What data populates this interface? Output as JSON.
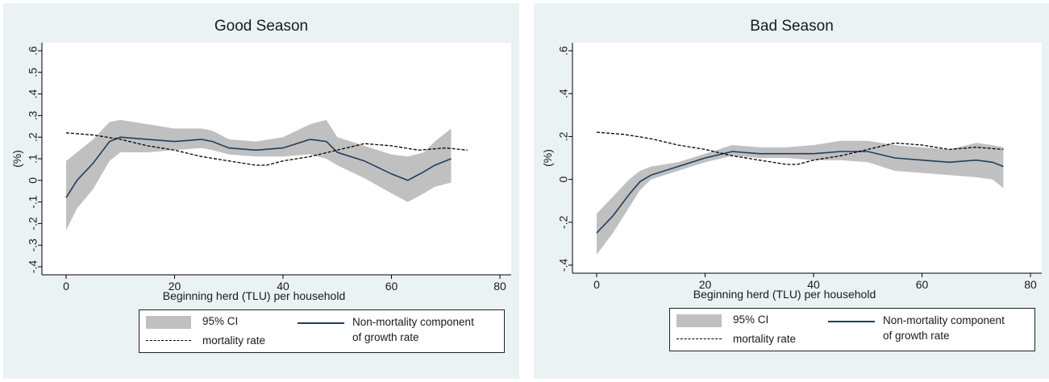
{
  "chart_data": [
    {
      "type": "line",
      "title": "Good Season",
      "xlabel": "Beginning herd (TLU) per household",
      "ylabel": "(%)",
      "xlim": [
        0,
        80
      ],
      "ylim": [
        -0.4,
        0.6
      ],
      "xticks": [
        "0",
        "20",
        "40",
        "60",
        "80"
      ],
      "yticks": [
        "-.4",
        "-.3",
        "-.2",
        "-.1",
        "0",
        ".1",
        ".2",
        ".3",
        ".4",
        ".5",
        ".6"
      ],
      "grid": false,
      "legend_position": "bottom",
      "series": [
        {
          "name": "Non-mortality component of growth rate",
          "style": "solid",
          "color": "#1f3d5c",
          "x": [
            0,
            2,
            5,
            8,
            10,
            15,
            20,
            25,
            27,
            30,
            35,
            40,
            45,
            48,
            50,
            55,
            60,
            63,
            66,
            68,
            71
          ],
          "y": [
            -0.08,
            0.0,
            0.08,
            0.18,
            0.2,
            0.19,
            0.18,
            0.19,
            0.18,
            0.15,
            0.14,
            0.15,
            0.19,
            0.18,
            0.13,
            0.09,
            0.03,
            0.0,
            0.04,
            0.07,
            0.1
          ]
        },
        {
          "name": "mortality rate",
          "style": "dashed",
          "color": "#000000",
          "x": [
            0,
            5,
            10,
            15,
            20,
            25,
            30,
            35,
            37,
            40,
            45,
            50,
            55,
            60,
            65,
            70,
            74
          ],
          "y": [
            0.22,
            0.21,
            0.19,
            0.16,
            0.14,
            0.11,
            0.09,
            0.07,
            0.07,
            0.09,
            0.11,
            0.14,
            0.17,
            0.16,
            0.14,
            0.15,
            0.14
          ]
        },
        {
          "name": "95% CI",
          "style": "band",
          "color": "#c0c0c0",
          "x": [
            0,
            2,
            5,
            8,
            10,
            15,
            20,
            25,
            27,
            30,
            35,
            40,
            45,
            48,
            50,
            55,
            60,
            63,
            66,
            68,
            71
          ],
          "lower": [
            -0.23,
            -0.13,
            -0.04,
            0.09,
            0.13,
            0.13,
            0.14,
            0.15,
            0.14,
            0.12,
            0.11,
            0.11,
            0.12,
            0.1,
            0.07,
            0.01,
            -0.06,
            -0.1,
            -0.06,
            -0.03,
            -0.01
          ],
          "upper": [
            0.09,
            0.13,
            0.19,
            0.27,
            0.28,
            0.26,
            0.24,
            0.24,
            0.23,
            0.19,
            0.18,
            0.2,
            0.26,
            0.28,
            0.2,
            0.16,
            0.12,
            0.11,
            0.13,
            0.18,
            0.24
          ]
        }
      ]
    },
    {
      "type": "line",
      "title": "Bad Season",
      "xlabel": "Beginning herd (TLU) per household",
      "ylabel": "(%)",
      "xlim": [
        0,
        80
      ],
      "ylim": [
        -0.4,
        0.6
      ],
      "xticks": [
        "0",
        "20",
        "40",
        "60",
        "80"
      ],
      "yticks": [
        "-.4",
        "-.2",
        "0",
        ".2",
        ".4",
        ".6"
      ],
      "grid": false,
      "legend_position": "bottom",
      "series": [
        {
          "name": "Non-mortality component of growth rate",
          "style": "solid",
          "color": "#1f3d5c",
          "x": [
            0,
            3,
            6,
            8,
            10,
            15,
            20,
            25,
            30,
            35,
            40,
            45,
            50,
            55,
            60,
            65,
            70,
            73,
            75
          ],
          "y": [
            -0.25,
            -0.17,
            -0.07,
            -0.01,
            0.02,
            0.06,
            0.1,
            0.13,
            0.12,
            0.12,
            0.12,
            0.13,
            0.13,
            0.1,
            0.09,
            0.08,
            0.09,
            0.08,
            0.06
          ]
        },
        {
          "name": "mortality rate",
          "style": "dashed",
          "color": "#000000",
          "x": [
            0,
            5,
            10,
            15,
            20,
            25,
            30,
            35,
            37,
            40,
            45,
            50,
            55,
            60,
            65,
            70,
            75
          ],
          "y": [
            0.22,
            0.21,
            0.19,
            0.16,
            0.14,
            0.11,
            0.09,
            0.07,
            0.07,
            0.09,
            0.11,
            0.14,
            0.17,
            0.16,
            0.14,
            0.15,
            0.14
          ]
        },
        {
          "name": "95% CI",
          "style": "band",
          "color": "#c0c0c0",
          "x": [
            0,
            3,
            6,
            8,
            10,
            15,
            20,
            25,
            30,
            35,
            40,
            45,
            50,
            55,
            60,
            65,
            70,
            73,
            75
          ],
          "lower": [
            -0.35,
            -0.25,
            -0.13,
            -0.05,
            0.0,
            0.04,
            0.08,
            0.11,
            0.1,
            0.1,
            0.09,
            0.09,
            0.08,
            0.04,
            0.03,
            0.02,
            0.01,
            0.0,
            -0.04
          ],
          "upper": [
            -0.16,
            -0.08,
            0.0,
            0.04,
            0.06,
            0.08,
            0.12,
            0.16,
            0.15,
            0.15,
            0.16,
            0.18,
            0.18,
            0.16,
            0.15,
            0.14,
            0.17,
            0.16,
            0.15
          ]
        }
      ]
    }
  ],
  "legends": [
    {
      "ci_label": "95% CI",
      "mortality_label": "mortality rate",
      "growth_label_line1": "Non-mortality component",
      "growth_label_line2": "of growth rate"
    },
    {
      "ci_label": "95% CI",
      "mortality_label": "mortality rate",
      "growth_label_line1": "Non-mortality component",
      "growth_label_line2": "of growth rate"
    }
  ]
}
